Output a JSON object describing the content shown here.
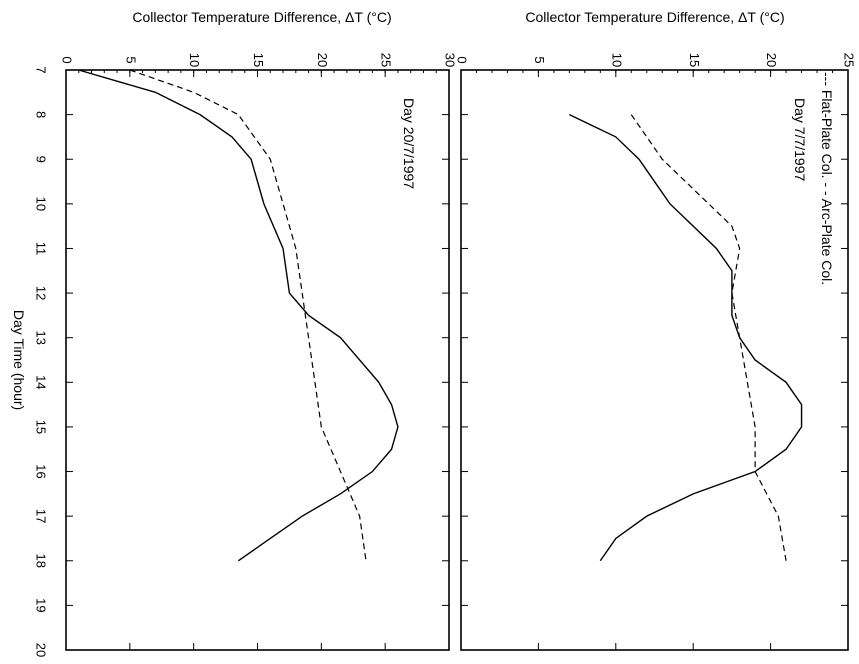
{
  "chart_data": [
    {
      "type": "line",
      "title": "Day 20/7/1997",
      "xlabel": "Day Time (hour)",
      "ylabel": "Collector Temperature Difference, ΔT (°C)",
      "xlim": [
        7,
        20
      ],
      "ylim": [
        0,
        30
      ],
      "x_ticks": [
        "7",
        "8",
        "9",
        "10",
        "11",
        "12",
        "13",
        "14",
        "15",
        "16",
        "17",
        "18",
        "19",
        "20"
      ],
      "y_ticks": [
        "0",
        "5",
        "10",
        "15",
        "20",
        "25",
        "30"
      ],
      "series": [
        {
          "style": "solid",
          "x": [
            7.0,
            7.5,
            8.0,
            8.5,
            9.0,
            10.0,
            11.0,
            12.0,
            12.5,
            13.0,
            14.0,
            14.5,
            15.0,
            15.5,
            16.0,
            16.5,
            17.0,
            17.5,
            18.0
          ],
          "y": [
            1.0,
            7.0,
            10.5,
            13.0,
            14.5,
            15.5,
            17.0,
            17.5,
            19.0,
            21.5,
            24.5,
            25.5,
            26.0,
            25.5,
            24.0,
            21.5,
            18.5,
            16.0,
            13.5
          ]
        },
        {
          "style": "dashed",
          "x": [
            7.0,
            7.5,
            8.0,
            9.0,
            10.0,
            11.0,
            12.0,
            13.0,
            14.0,
            15.0,
            16.0,
            17.0,
            18.0
          ],
          "y": [
            5.0,
            10.0,
            13.5,
            16.0,
            17.0,
            18.0,
            18.5,
            19.0,
            19.5,
            20.0,
            21.5,
            23.0,
            23.5
          ]
        }
      ]
    },
    {
      "type": "line",
      "title": "Day 7/7/1997",
      "legend": "--- Flat-Plate Col.  - - Arc-Plate Col.",
      "xlabel": "",
      "ylabel": "Collector Temperature Difference, ΔT (°C)",
      "xlim": [
        7,
        20
      ],
      "ylim": [
        0,
        25
      ],
      "x_ticks": [
        "7",
        "8",
        "9",
        "10",
        "11",
        "12",
        "13",
        "14",
        "15",
        "16",
        "17",
        "18",
        "19",
        "20"
      ],
      "y_ticks": [
        "0",
        "5",
        "10",
        "15",
        "20",
        "25"
      ],
      "series": [
        {
          "name": "Flat-Plate Col.",
          "style": "solid",
          "x": [
            8.0,
            8.5,
            9.0,
            9.5,
            10.0,
            10.5,
            11.0,
            11.5,
            12.0,
            12.5,
            13.0,
            13.5,
            14.0,
            14.5,
            15.0,
            15.5,
            16.0,
            16.5,
            17.0,
            17.5,
            18.0
          ],
          "y": [
            7.0,
            10.0,
            11.5,
            12.5,
            13.5,
            15.0,
            16.5,
            17.5,
            17.5,
            17.5,
            18.0,
            19.0,
            21.0,
            22.0,
            22.0,
            21.0,
            19.0,
            15.0,
            12.0,
            10.0,
            9.0
          ]
        },
        {
          "name": "Arc-Plate Col.",
          "style": "dashed",
          "x": [
            8.0,
            9.0,
            9.5,
            10.0,
            10.5,
            11.0,
            12.0,
            13.0,
            14.0,
            15.0,
            16.0,
            17.0,
            18.0
          ],
          "y": [
            11.0,
            13.0,
            14.5,
            16.0,
            17.5,
            18.0,
            17.5,
            18.0,
            18.5,
            19.0,
            19.0,
            20.5,
            21.0
          ]
        }
      ]
    }
  ]
}
